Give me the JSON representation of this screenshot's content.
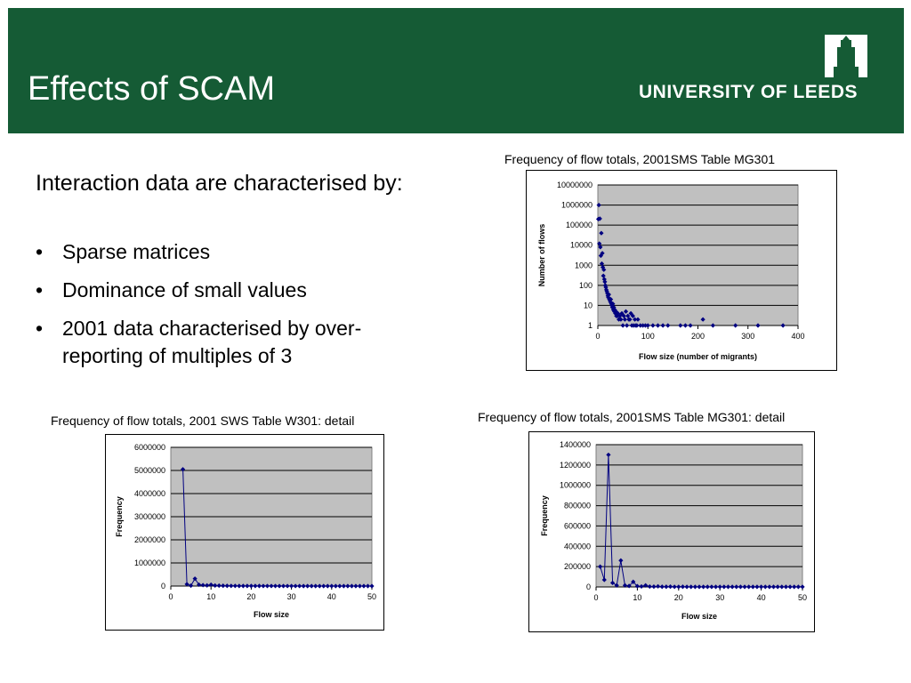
{
  "slide": {
    "title": "Effects of SCAM",
    "logo_text": "UNIVERSITY OF LEEDS",
    "intro": "Interaction data are characterised by:",
    "bullets": [
      "Sparse matrices",
      "Dominance of small values",
      "2001 data characterised by over-reporting of multiples of 3"
    ],
    "bullet_symbol": "•",
    "colors": {
      "header": "#155b35",
      "plot_bg": "#c0c0c0",
      "series": "#000080"
    }
  },
  "chart_data": [
    {
      "caption": "Frequency of flow totals, 2001SMS Table MG301",
      "type": "scatter",
      "xlabel": "Flow size (number of migrants)",
      "ylabel": "Number of flows",
      "yscale": "log",
      "xlim": [
        0,
        400
      ],
      "ylim": [
        1,
        10000000
      ],
      "xticks": [
        "0",
        "100",
        "200",
        "300",
        "400"
      ],
      "yticks": [
        "1",
        "10",
        "100",
        "1000",
        "10000",
        "100000",
        "1000000",
        "10000000"
      ],
      "grid": true,
      "x": [
        1,
        2,
        3,
        4,
        5,
        6,
        7,
        8,
        9,
        10,
        11,
        12,
        13,
        14,
        15,
        16,
        17,
        18,
        19,
        20,
        21,
        22,
        23,
        24,
        25,
        26,
        27,
        28,
        29,
        30,
        31,
        32,
        33,
        34,
        35,
        36,
        37,
        38,
        39,
        40,
        42,
        44,
        46,
        48,
        50,
        52,
        54,
        56,
        58,
        60,
        62,
        64,
        66,
        68,
        70,
        72,
        74,
        76,
        78,
        80,
        85,
        90,
        95,
        100,
        110,
        120,
        130,
        140,
        165,
        175,
        185,
        210,
        230,
        275,
        320,
        370
      ],
      "y": [
        200000,
        1000000,
        12000,
        210000,
        8000,
        3000,
        40000,
        1200,
        4000,
        800,
        300,
        600,
        200,
        150,
        100,
        80,
        60,
        50,
        40,
        30,
        25,
        35,
        20,
        18,
        15,
        20,
        12,
        10,
        8,
        12,
        6,
        8,
        5,
        6,
        4,
        5,
        3,
        4,
        3,
        4,
        2,
        3,
        2,
        4,
        1,
        3,
        2,
        5,
        1,
        3,
        2,
        2,
        4,
        1,
        3,
        1,
        2,
        1,
        1,
        2,
        1,
        1,
        1,
        1,
        1,
        1,
        1,
        1,
        1,
        1,
        1,
        2,
        1,
        1,
        1,
        1
      ]
    },
    {
      "caption": "Frequency of flow totals, 2001 SWS Table W301: detail",
      "type": "line",
      "xlabel": "Flow size",
      "ylabel": "Frequency",
      "xlim": [
        0,
        50
      ],
      "ylim": [
        0,
        6000000
      ],
      "xticks": [
        "0",
        "10",
        "20",
        "30",
        "40",
        "50"
      ],
      "yticks": [
        "0",
        "1000000",
        "2000000",
        "3000000",
        "4000000",
        "5000000",
        "6000000"
      ],
      "grid": true,
      "x": [
        3,
        4,
        5,
        6,
        7,
        8,
        9,
        10,
        11,
        12,
        13,
        14,
        15,
        16,
        17,
        18,
        19,
        20,
        21,
        22,
        23,
        24,
        25,
        26,
        27,
        28,
        29,
        30,
        31,
        32,
        33,
        34,
        35,
        36,
        37,
        38,
        39,
        40,
        41,
        42,
        43,
        44,
        45,
        46,
        47,
        48,
        49,
        50
      ],
      "y": [
        5050000,
        80000,
        20000,
        320000,
        60000,
        40000,
        30000,
        60000,
        25000,
        20000,
        15000,
        10000,
        8000,
        8000,
        6000,
        5000,
        5000,
        5000,
        4000,
        4000,
        3000,
        3000,
        3000,
        3000,
        2000,
        2000,
        2000,
        2000,
        2000,
        2000,
        1000,
        1000,
        1000,
        1000,
        1000,
        1000,
        1000,
        1000,
        1000,
        1000,
        1000,
        1000,
        1000,
        1000,
        1000,
        1000,
        1000,
        1000
      ]
    },
    {
      "caption": "Frequency of flow totals, 2001SMS Table MG301: detail",
      "type": "line",
      "xlabel": "Flow size",
      "ylabel": "Frequency",
      "xlim": [
        0,
        50
      ],
      "ylim": [
        0,
        1400000
      ],
      "xticks": [
        "0",
        "10",
        "20",
        "30",
        "40",
        "50"
      ],
      "yticks": [
        "0",
        "200000",
        "400000",
        "600000",
        "800000",
        "1000000",
        "1200000",
        "1400000"
      ],
      "grid": true,
      "x": [
        1,
        2,
        3,
        4,
        5,
        6,
        7,
        8,
        9,
        10,
        11,
        12,
        13,
        14,
        15,
        16,
        17,
        18,
        19,
        20,
        21,
        22,
        23,
        24,
        25,
        26,
        27,
        28,
        29,
        30,
        31,
        32,
        33,
        34,
        35,
        36,
        37,
        38,
        39,
        40,
        41,
        42,
        43,
        44,
        45,
        46,
        47,
        48,
        49,
        50
      ],
      "y": [
        200000,
        70000,
        1300000,
        40000,
        15000,
        260000,
        15000,
        10000,
        50000,
        8000,
        5000,
        15000,
        4000,
        3000,
        6000,
        2000,
        2000,
        3000,
        1500,
        1500,
        2000,
        1000,
        1000,
        1000,
        1000,
        1000,
        1000,
        1000,
        1000,
        1000,
        1000,
        1000,
        1000,
        1000,
        1000,
        1000,
        1000,
        1000,
        1000,
        1000,
        1000,
        1000,
        1000,
        1000,
        1000,
        1000,
        1000,
        1000,
        1000,
        1000
      ]
    }
  ]
}
